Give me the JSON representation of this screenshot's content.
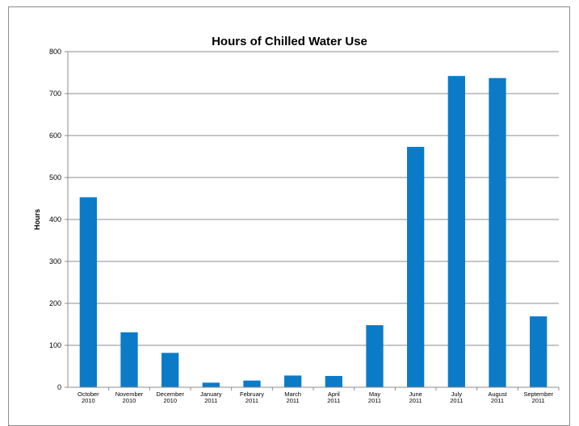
{
  "chart_data": {
    "type": "bar",
    "title": "Hours of Chilled Water Use",
    "xlabel": "",
    "ylabel": "Hours",
    "ylim": [
      0,
      800
    ],
    "yticks": [
      0,
      100,
      200,
      300,
      400,
      500,
      600,
      700,
      800
    ],
    "grid": true,
    "legend": "none",
    "bar_color": "#0b7bc8",
    "categories": [
      [
        "October",
        "2010"
      ],
      [
        "November",
        "2010"
      ],
      [
        "December",
        "2010"
      ],
      [
        "January",
        "2011"
      ],
      [
        "February",
        "2011"
      ],
      [
        "March",
        "2011"
      ],
      [
        "April",
        "2011"
      ],
      [
        "May",
        "2011"
      ],
      [
        "June",
        "2011"
      ],
      [
        "July",
        "2011"
      ],
      [
        "August",
        "2011"
      ],
      [
        "September",
        "2011"
      ]
    ],
    "values": [
      453,
      131,
      82,
      11,
      16,
      28,
      27,
      148,
      573,
      742,
      737,
      169
    ]
  }
}
